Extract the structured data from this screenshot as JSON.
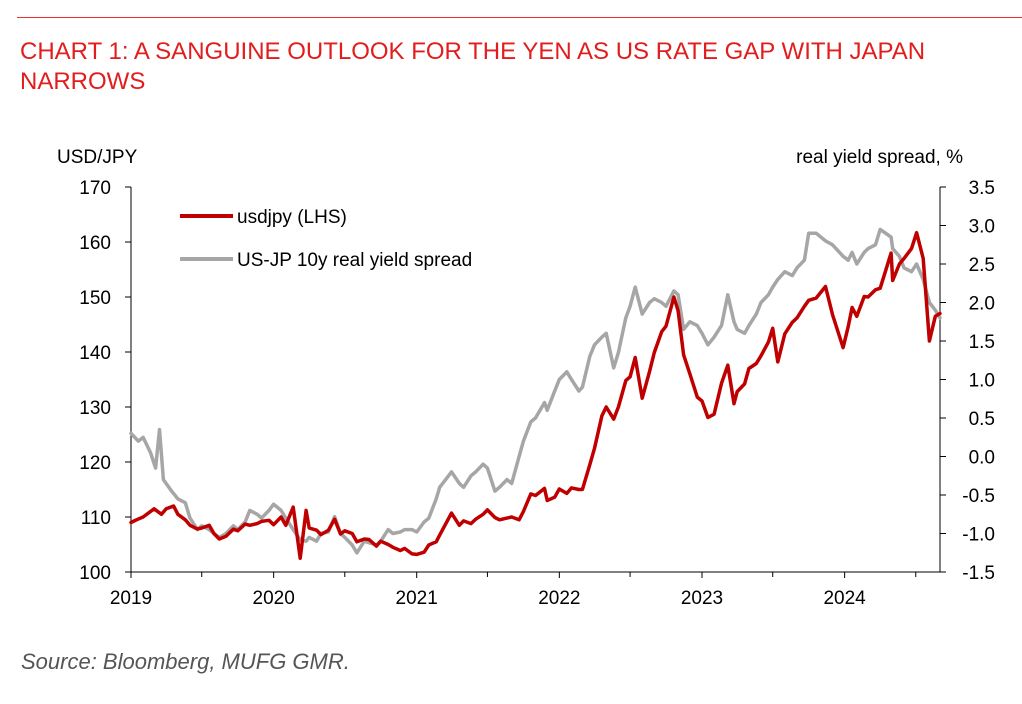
{
  "chart_data": {
    "type": "line",
    "title": "CHART 1: A SANGUINE OUTLOOK FOR THE YEN AS US RATE GAP WITH JAPAN NARROWS",
    "y_left_label": "USD/JPY",
    "y_right_label": "real yield spread, %",
    "xlim": [
      "2019-01-01",
      "2024-09-01"
    ],
    "x_ticks": [
      "2019",
      "2020",
      "2021",
      "2022",
      "2023",
      "2024"
    ],
    "y_left_range": [
      100,
      170
    ],
    "y_left_ticks": [
      "100",
      "110",
      "120",
      "130",
      "140",
      "150",
      "160",
      "170"
    ],
    "y_right_range": [
      -1.5,
      3.5
    ],
    "y_right_ticks": [
      "-1.5",
      "-1.0",
      "-0.5",
      "0.0",
      "0.5",
      "1.0",
      "1.5",
      "2.0",
      "2.5",
      "3.0",
      "3.5"
    ],
    "grid": false,
    "legend_position": "top-left",
    "series": [
      {
        "name": "usdjpy (LHS)",
        "axis": "left",
        "color": "#c00000",
        "points": [
          [
            "2019-01-01",
            109.0
          ],
          [
            "2019-01-15",
            109.5
          ],
          [
            "2019-02-01",
            110.0
          ],
          [
            "2019-02-20",
            111.0
          ],
          [
            "2019-03-01",
            111.5
          ],
          [
            "2019-03-20",
            110.5
          ],
          [
            "2019-04-01",
            111.5
          ],
          [
            "2019-04-20",
            112.0
          ],
          [
            "2019-05-01",
            110.5
          ],
          [
            "2019-05-20",
            109.5
          ],
          [
            "2019-06-01",
            108.5
          ],
          [
            "2019-06-20",
            107.8
          ],
          [
            "2019-07-01",
            108.0
          ],
          [
            "2019-07-20",
            108.5
          ],
          [
            "2019-08-01",
            107.0
          ],
          [
            "2019-08-15",
            106.0
          ],
          [
            "2019-09-01",
            106.5
          ],
          [
            "2019-09-20",
            107.8
          ],
          [
            "2019-10-01",
            107.5
          ],
          [
            "2019-10-20",
            108.7
          ],
          [
            "2019-11-01",
            108.5
          ],
          [
            "2019-11-20",
            108.8
          ],
          [
            "2019-12-01",
            109.2
          ],
          [
            "2019-12-20",
            109.4
          ],
          [
            "2020-01-01",
            108.6
          ],
          [
            "2020-01-20",
            110.0
          ],
          [
            "2020-02-01",
            108.5
          ],
          [
            "2020-02-20",
            111.8
          ],
          [
            "2020-03-09",
            102.5
          ],
          [
            "2020-03-24",
            111.2
          ],
          [
            "2020-04-01",
            108.0
          ],
          [
            "2020-04-20",
            107.6
          ],
          [
            "2020-05-01",
            106.8
          ],
          [
            "2020-05-20",
            107.6
          ],
          [
            "2020-06-05",
            109.6
          ],
          [
            "2020-06-20",
            106.9
          ],
          [
            "2020-07-01",
            107.5
          ],
          [
            "2020-07-20",
            107.0
          ],
          [
            "2020-08-01",
            105.5
          ],
          [
            "2020-08-20",
            106.0
          ],
          [
            "2020-09-01",
            105.9
          ],
          [
            "2020-09-20",
            104.7
          ],
          [
            "2020-10-01",
            105.6
          ],
          [
            "2020-10-20",
            105.0
          ],
          [
            "2020-11-01",
            104.5
          ],
          [
            "2020-11-20",
            103.9
          ],
          [
            "2020-12-01",
            104.3
          ],
          [
            "2020-12-20",
            103.3
          ],
          [
            "2021-01-01",
            103.2
          ],
          [
            "2021-01-20",
            103.6
          ],
          [
            "2021-02-01",
            104.9
          ],
          [
            "2021-02-20",
            105.5
          ],
          [
            "2021-03-01",
            106.7
          ],
          [
            "2021-03-31",
            110.7
          ],
          [
            "2021-04-20",
            108.5
          ],
          [
            "2021-05-01",
            109.3
          ],
          [
            "2021-05-20",
            108.8
          ],
          [
            "2021-06-01",
            109.6
          ],
          [
            "2021-06-20",
            110.5
          ],
          [
            "2021-07-01",
            111.3
          ],
          [
            "2021-07-20",
            109.9
          ],
          [
            "2021-08-01",
            109.5
          ],
          [
            "2021-08-20",
            109.8
          ],
          [
            "2021-09-01",
            110.0
          ],
          [
            "2021-09-20",
            109.5
          ],
          [
            "2021-10-01",
            111.0
          ],
          [
            "2021-10-20",
            114.2
          ],
          [
            "2021-11-01",
            113.9
          ],
          [
            "2021-11-24",
            115.2
          ],
          [
            "2021-12-01",
            113.0
          ],
          [
            "2021-12-20",
            113.6
          ],
          [
            "2022-01-01",
            115.1
          ],
          [
            "2022-01-20",
            114.3
          ],
          [
            "2022-02-01",
            115.3
          ],
          [
            "2022-02-20",
            115.0
          ],
          [
            "2022-03-01",
            115.0
          ],
          [
            "2022-03-20",
            119.5
          ],
          [
            "2022-04-01",
            122.5
          ],
          [
            "2022-04-20",
            128.4
          ],
          [
            "2022-05-01",
            130.0
          ],
          [
            "2022-05-20",
            127.8
          ],
          [
            "2022-06-01",
            130.0
          ],
          [
            "2022-06-20",
            134.8
          ],
          [
            "2022-07-01",
            135.5
          ],
          [
            "2022-07-14",
            139.0
          ],
          [
            "2022-08-01",
            131.6
          ],
          [
            "2022-08-20",
            136.5
          ],
          [
            "2022-09-01",
            139.9
          ],
          [
            "2022-09-20",
            143.7
          ],
          [
            "2022-10-01",
            144.7
          ],
          [
            "2022-10-21",
            150.0
          ],
          [
            "2022-11-01",
            147.5
          ],
          [
            "2022-11-15",
            139.5
          ],
          [
            "2022-12-01",
            136.0
          ],
          [
            "2022-12-20",
            131.8
          ],
          [
            "2023-01-01",
            131.1
          ],
          [
            "2023-01-16",
            128.1
          ],
          [
            "2023-02-01",
            128.7
          ],
          [
            "2023-02-20",
            134.3
          ],
          [
            "2023-03-08",
            137.6
          ],
          [
            "2023-03-24",
            130.6
          ],
          [
            "2023-04-01",
            132.8
          ],
          [
            "2023-04-20",
            134.2
          ],
          [
            "2023-05-01",
            137.0
          ],
          [
            "2023-05-20",
            137.9
          ],
          [
            "2023-06-01",
            139.3
          ],
          [
            "2023-06-20",
            141.8
          ],
          [
            "2023-07-01",
            144.3
          ],
          [
            "2023-07-14",
            138.2
          ],
          [
            "2023-08-01",
            143.3
          ],
          [
            "2023-08-20",
            145.4
          ],
          [
            "2023-09-01",
            146.2
          ],
          [
            "2023-09-20",
            148.3
          ],
          [
            "2023-10-01",
            149.4
          ],
          [
            "2023-10-20",
            149.8
          ],
          [
            "2023-11-13",
            151.9
          ],
          [
            "2023-12-01",
            146.8
          ],
          [
            "2023-12-28",
            140.8
          ],
          [
            "2024-01-10",
            144.6
          ],
          [
            "2024-01-20",
            148.1
          ],
          [
            "2024-02-01",
            146.5
          ],
          [
            "2024-02-20",
            150.1
          ],
          [
            "2024-03-01",
            150.0
          ],
          [
            "2024-03-20",
            151.3
          ],
          [
            "2024-04-01",
            151.6
          ],
          [
            "2024-04-29",
            158.0
          ],
          [
            "2024-05-03",
            153.0
          ],
          [
            "2024-05-20",
            156.0
          ],
          [
            "2024-06-01",
            157.0
          ],
          [
            "2024-06-20",
            158.8
          ],
          [
            "2024-07-03",
            161.7
          ],
          [
            "2024-07-20",
            157.0
          ],
          [
            "2024-08-05",
            142.0
          ],
          [
            "2024-08-20",
            146.5
          ],
          [
            "2024-09-01",
            147.0
          ]
        ]
      },
      {
        "name": "US-JP 10y real yield spread",
        "axis": "right",
        "color": "#a6a6a6",
        "points": [
          [
            "2019-01-01",
            0.3
          ],
          [
            "2019-01-20",
            0.2
          ],
          [
            "2019-02-01",
            0.25
          ],
          [
            "2019-02-20",
            0.05
          ],
          [
            "2019-03-05",
            -0.15
          ],
          [
            "2019-03-15",
            0.35
          ],
          [
            "2019-03-25",
            -0.3
          ],
          [
            "2019-04-15",
            -0.45
          ],
          [
            "2019-05-01",
            -0.55
          ],
          [
            "2019-05-20",
            -0.6
          ],
          [
            "2019-06-01",
            -0.8
          ],
          [
            "2019-06-20",
            -0.95
          ],
          [
            "2019-07-01",
            -0.9
          ],
          [
            "2019-07-20",
            -0.95
          ],
          [
            "2019-08-01",
            -1.0
          ],
          [
            "2019-08-15",
            -1.05
          ],
          [
            "2019-09-01",
            -1.0
          ],
          [
            "2019-09-20",
            -0.9
          ],
          [
            "2019-10-01",
            -0.95
          ],
          [
            "2019-10-20",
            -0.85
          ],
          [
            "2019-11-01",
            -0.7
          ],
          [
            "2019-11-20",
            -0.75
          ],
          [
            "2019-12-01",
            -0.8
          ],
          [
            "2019-12-20",
            -0.7
          ],
          [
            "2020-01-01",
            -0.62
          ],
          [
            "2020-01-20",
            -0.7
          ],
          [
            "2020-02-01",
            -0.8
          ],
          [
            "2020-02-20",
            -0.95
          ],
          [
            "2020-03-09",
            -1.08
          ],
          [
            "2020-03-24",
            -1.1
          ],
          [
            "2020-04-01",
            -1.05
          ],
          [
            "2020-04-20",
            -1.1
          ],
          [
            "2020-05-01",
            -1.0
          ],
          [
            "2020-05-20",
            -0.98
          ],
          [
            "2020-06-05",
            -0.78
          ],
          [
            "2020-06-20",
            -1.0
          ],
          [
            "2020-07-01",
            -1.05
          ],
          [
            "2020-07-20",
            -1.15
          ],
          [
            "2020-08-01",
            -1.25
          ],
          [
            "2020-08-20",
            -1.1
          ],
          [
            "2020-09-01",
            -1.12
          ],
          [
            "2020-09-20",
            -1.15
          ],
          [
            "2020-10-01",
            -1.1
          ],
          [
            "2020-10-20",
            -0.95
          ],
          [
            "2020-11-01",
            -1.0
          ],
          [
            "2020-11-20",
            -0.98
          ],
          [
            "2020-12-01",
            -0.95
          ],
          [
            "2020-12-20",
            -0.95
          ],
          [
            "2021-01-01",
            -0.98
          ],
          [
            "2021-01-20",
            -0.85
          ],
          [
            "2021-02-01",
            -0.8
          ],
          [
            "2021-02-20",
            -0.55
          ],
          [
            "2021-03-01",
            -0.4
          ],
          [
            "2021-03-31",
            -0.2
          ],
          [
            "2021-04-20",
            -0.35
          ],
          [
            "2021-05-01",
            -0.4
          ],
          [
            "2021-05-20",
            -0.25
          ],
          [
            "2021-06-01",
            -0.2
          ],
          [
            "2021-06-20",
            -0.1
          ],
          [
            "2021-07-01",
            -0.15
          ],
          [
            "2021-07-20",
            -0.45
          ],
          [
            "2021-08-01",
            -0.4
          ],
          [
            "2021-08-20",
            -0.3
          ],
          [
            "2021-09-01",
            -0.35
          ],
          [
            "2021-09-20",
            0.0
          ],
          [
            "2021-10-01",
            0.2
          ],
          [
            "2021-10-20",
            0.45
          ],
          [
            "2021-11-01",
            0.5
          ],
          [
            "2021-11-24",
            0.7
          ],
          [
            "2021-12-01",
            0.6
          ],
          [
            "2021-12-20",
            0.85
          ],
          [
            "2022-01-01",
            1.0
          ],
          [
            "2022-01-20",
            1.1
          ],
          [
            "2022-02-01",
            1.0
          ],
          [
            "2022-02-20",
            0.85
          ],
          [
            "2022-03-01",
            0.9
          ],
          [
            "2022-03-20",
            1.3
          ],
          [
            "2022-04-01",
            1.45
          ],
          [
            "2022-04-20",
            1.55
          ],
          [
            "2022-05-01",
            1.6
          ],
          [
            "2022-05-20",
            1.15
          ],
          [
            "2022-06-01",
            1.35
          ],
          [
            "2022-06-20",
            1.8
          ],
          [
            "2022-07-01",
            1.95
          ],
          [
            "2022-07-14",
            2.2
          ],
          [
            "2022-08-01",
            1.85
          ],
          [
            "2022-08-20",
            2.0
          ],
          [
            "2022-09-01",
            2.05
          ],
          [
            "2022-09-20",
            2.0
          ],
          [
            "2022-10-01",
            1.95
          ],
          [
            "2022-10-21",
            2.15
          ],
          [
            "2022-11-01",
            2.1
          ],
          [
            "2022-11-15",
            1.65
          ],
          [
            "2022-12-01",
            1.75
          ],
          [
            "2022-12-20",
            1.7
          ],
          [
            "2023-01-01",
            1.6
          ],
          [
            "2023-01-16",
            1.45
          ],
          [
            "2023-02-01",
            1.55
          ],
          [
            "2023-02-20",
            1.7
          ],
          [
            "2023-03-08",
            2.1
          ],
          [
            "2023-03-24",
            1.75
          ],
          [
            "2023-04-01",
            1.65
          ],
          [
            "2023-04-20",
            1.6
          ],
          [
            "2023-05-01",
            1.7
          ],
          [
            "2023-05-20",
            1.85
          ],
          [
            "2023-06-01",
            2.0
          ],
          [
            "2023-06-20",
            2.1
          ],
          [
            "2023-07-01",
            2.2
          ],
          [
            "2023-07-14",
            2.3
          ],
          [
            "2023-08-01",
            2.4
          ],
          [
            "2023-08-20",
            2.35
          ],
          [
            "2023-09-01",
            2.45
          ],
          [
            "2023-09-20",
            2.55
          ],
          [
            "2023-10-01",
            2.9
          ],
          [
            "2023-10-20",
            2.9
          ],
          [
            "2023-11-13",
            2.8
          ],
          [
            "2023-12-01",
            2.75
          ],
          [
            "2023-12-28",
            2.6
          ],
          [
            "2024-01-10",
            2.55
          ],
          [
            "2024-01-20",
            2.65
          ],
          [
            "2024-02-01",
            2.5
          ],
          [
            "2024-02-20",
            2.65
          ],
          [
            "2024-03-01",
            2.7
          ],
          [
            "2024-03-20",
            2.75
          ],
          [
            "2024-04-01",
            2.95
          ],
          [
            "2024-04-29",
            2.85
          ],
          [
            "2024-05-03",
            2.7
          ],
          [
            "2024-05-20",
            2.6
          ],
          [
            "2024-06-01",
            2.45
          ],
          [
            "2024-06-20",
            2.4
          ],
          [
            "2024-07-03",
            2.5
          ],
          [
            "2024-07-20",
            2.3
          ],
          [
            "2024-08-05",
            2.0
          ],
          [
            "2024-08-20",
            1.9
          ],
          [
            "2024-09-01",
            1.8
          ]
        ]
      }
    ]
  },
  "footer": {
    "source": "Source: Bloomberg, MUFG GMR."
  }
}
